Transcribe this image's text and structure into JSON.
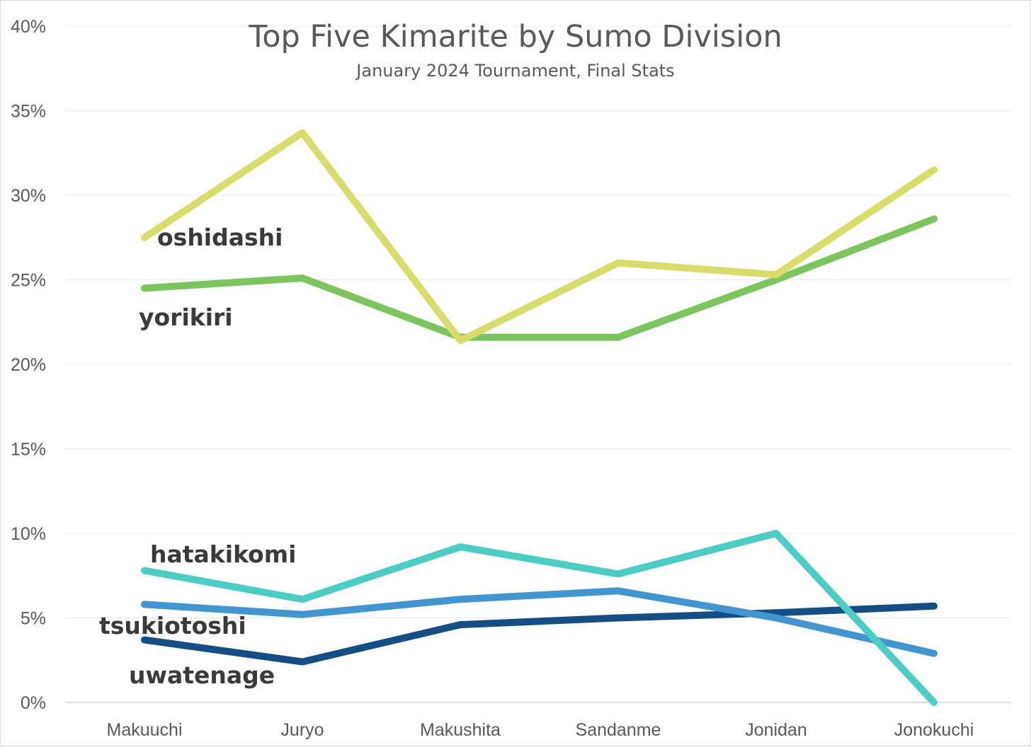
{
  "chart_data": {
    "type": "line",
    "title": "Top Five Kimarite by Sumo Division",
    "subtitle": "January 2024 Tournament, Final Stats",
    "xlabel": "",
    "ylabel": "",
    "categories": [
      "Makuuchi",
      "Juryo",
      "Makushita",
      "Sandanme",
      "Jonidan",
      "Jonokuchi"
    ],
    "ylim": [
      0,
      40
    ],
    "yticks": [
      0,
      5,
      10,
      15,
      20,
      25,
      30,
      35,
      40
    ],
    "ytick_labels": [
      "0%",
      "5%",
      "10%",
      "15%",
      "20%",
      "25%",
      "30%",
      "35%",
      "40%"
    ],
    "grid": true,
    "legend": "inline labels",
    "series": [
      {
        "name": "oshidashi",
        "color": "#d9dc6a",
        "values": [
          27.5,
          33.7,
          21.4,
          26.0,
          25.3,
          31.5
        ]
      },
      {
        "name": "yorikiri",
        "color": "#7cc55e",
        "values": [
          24.5,
          25.1,
          21.6,
          21.6,
          25.0,
          28.6
        ]
      },
      {
        "name": "hatakikomi",
        "color": "#4dccc6",
        "values": [
          7.8,
          6.1,
          9.2,
          7.6,
          10.0,
          0.0
        ]
      },
      {
        "name": "tsukiotoshi",
        "color": "#4295cf",
        "values": [
          5.8,
          5.2,
          6.1,
          6.6,
          5.0,
          2.9
        ]
      },
      {
        "name": "uwatenage",
        "color": "#154d85",
        "values": [
          3.7,
          2.4,
          4.6,
          5.0,
          5.3,
          5.7
        ]
      }
    ]
  }
}
